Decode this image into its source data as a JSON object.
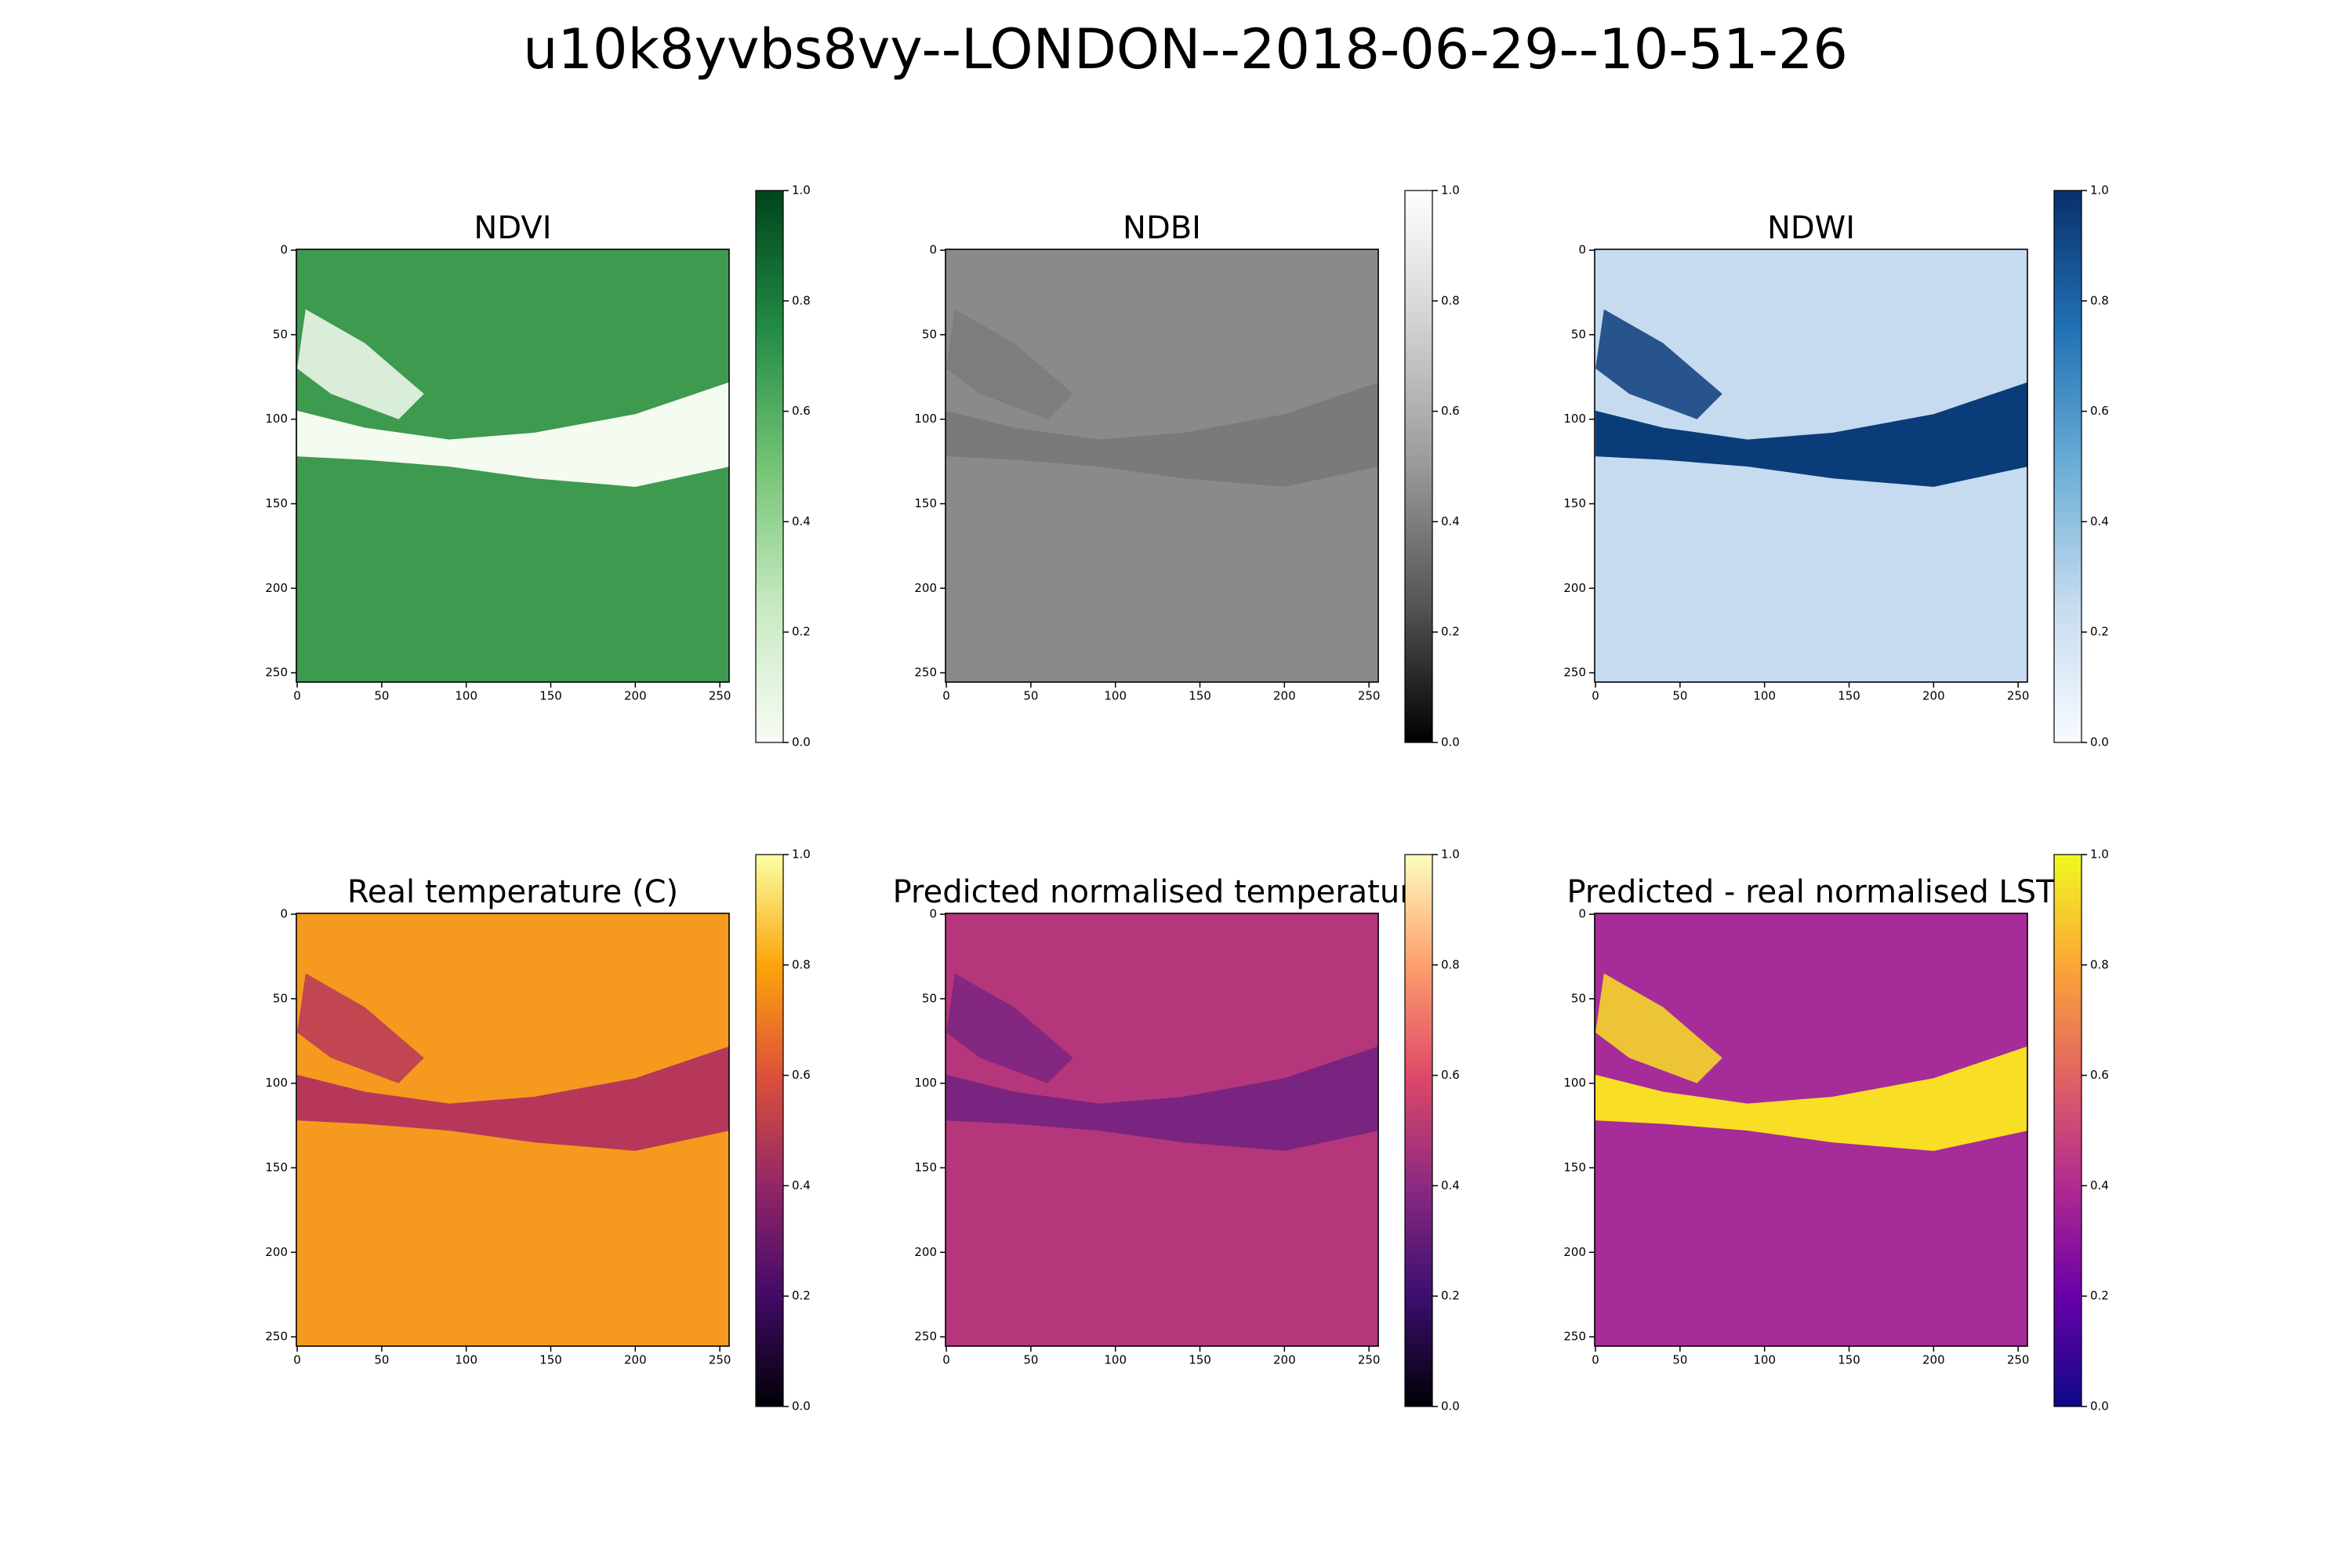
{
  "title": "u10k8yvbs8vy--LONDON--2018-06-29--10-51-26",
  "chart_data": [
    {
      "type": "image",
      "title": "NDVI",
      "xlim": [
        -0.5,
        255.5
      ],
      "ylim": [
        255.5,
        -0.5
      ],
      "xticks": [
        0,
        50,
        100,
        150,
        200,
        250
      ],
      "yticks": [
        0,
        50,
        100,
        150,
        200,
        250
      ],
      "land_color": "#3e9a4f",
      "river_color": "#f4fbf1",
      "colorbar": {
        "lim": [
          0,
          1
        ],
        "colors": [
          "#f7fcf5",
          "#c7e9c0",
          "#74c476",
          "#238b45",
          "#00441b"
        ],
        "ticks": [
          {
            "value": 0,
            "label": "0.0"
          },
          {
            "value": 0.2,
            "label": "0.2"
          },
          {
            "value": 0.4,
            "label": "0.4"
          },
          {
            "value": 0.6,
            "label": "0.6"
          },
          {
            "value": 0.8,
            "label": "0.8"
          },
          {
            "value": 1,
            "label": "1.0"
          }
        ]
      }
    },
    {
      "type": "image",
      "title": "NDBI",
      "xlim": [
        -0.5,
        255.5
      ],
      "ylim": [
        255.5,
        -0.5
      ],
      "xticks": [
        0,
        50,
        100,
        150,
        200,
        250
      ],
      "yticks": [
        0,
        50,
        100,
        150,
        200,
        250
      ],
      "land_color": "#8a8a8a",
      "river_color": "#7a7a7a",
      "colorbar": {
        "lim": [
          0,
          1
        ],
        "colors": [
          "#000000",
          "#555555",
          "#999999",
          "#d0d0d0",
          "#ffffff"
        ],
        "ticks": [
          {
            "value": 0,
            "label": "0.0"
          },
          {
            "value": 0.2,
            "label": "0.2"
          },
          {
            "value": 0.4,
            "label": "0.4"
          },
          {
            "value": 0.6,
            "label": "0.6"
          },
          {
            "value": 0.8,
            "label": "0.8"
          },
          {
            "value": 1,
            "label": "1.0"
          }
        ]
      }
    },
    {
      "type": "image",
      "title": "NDWI",
      "xlim": [
        -0.5,
        255.5
      ],
      "ylim": [
        255.5,
        -0.5
      ],
      "xticks": [
        0,
        50,
        100,
        150,
        200,
        250
      ],
      "yticks": [
        0,
        50,
        100,
        150,
        200,
        250
      ],
      "land_color": "#c6dbef",
      "river_color": "#0b3c7a",
      "colorbar": {
        "lim": [
          0,
          1
        ],
        "colors": [
          "#f7fbff",
          "#c6dbef",
          "#6baed6",
          "#2171b5",
          "#08306b"
        ],
        "ticks": [
          {
            "value": 0,
            "label": "0.0"
          },
          {
            "value": 0.2,
            "label": "0.2"
          },
          {
            "value": 0.4,
            "label": "0.4"
          },
          {
            "value": 0.6,
            "label": "0.6"
          },
          {
            "value": 0.8,
            "label": "0.8"
          },
          {
            "value": 1,
            "label": "1.0"
          }
        ]
      }
    },
    {
      "type": "image",
      "title": "Real temperature (C)",
      "xlim": [
        -0.5,
        255.5
      ],
      "ylim": [
        255.5,
        -0.5
      ],
      "xticks": [
        0,
        50,
        100,
        150,
        200,
        250
      ],
      "yticks": [
        0,
        50,
        100,
        150,
        200,
        250
      ],
      "land_color": "#f59a1e",
      "river_color": "#b7375a",
      "colorbar": {
        "lim": [
          0,
          1
        ],
        "colors": [
          "#000004",
          "#420a68",
          "#932667",
          "#dd513a",
          "#fca50a",
          "#fcffa4"
        ],
        "ticks": [
          {
            "value": 0,
            "label": "0.0"
          },
          {
            "value": 0.2,
            "label": "0.2"
          },
          {
            "value": 0.4,
            "label": "0.4"
          },
          {
            "value": 0.6,
            "label": "0.6"
          },
          {
            "value": 0.8,
            "label": "0.8"
          },
          {
            "value": 1,
            "label": "1.0"
          }
        ]
      }
    },
    {
      "type": "image",
      "title": "Predicted normalised temperature",
      "xlim": [
        -0.5,
        255.5
      ],
      "ylim": [
        255.5,
        -0.5
      ],
      "xticks": [
        0,
        50,
        100,
        150,
        200,
        250
      ],
      "yticks": [
        0,
        50,
        100,
        150,
        200,
        250
      ],
      "land_color": "#b5367a",
      "river_color": "#7a2482",
      "colorbar": {
        "lim": [
          0,
          1
        ],
        "colors": [
          "#000004",
          "#3b0f70",
          "#8c2981",
          "#de4968",
          "#fe9f6d",
          "#fcfdbf"
        ],
        "ticks": [
          {
            "value": 0,
            "label": "0.0"
          },
          {
            "value": 0.2,
            "label": "0.2"
          },
          {
            "value": 0.4,
            "label": "0.4"
          },
          {
            "value": 0.6,
            "label": "0.6"
          },
          {
            "value": 0.8,
            "label": "0.8"
          },
          {
            "value": 1,
            "label": "1.0"
          }
        ]
      }
    },
    {
      "type": "image",
      "title": "Predicted - real normalised LST",
      "xlim": [
        -0.5,
        255.5
      ],
      "ylim": [
        255.5,
        -0.5
      ],
      "xticks": [
        0,
        50,
        100,
        150,
        200,
        250
      ],
      "yticks": [
        0,
        50,
        100,
        150,
        200,
        250
      ],
      "land_color": "#a62c9a",
      "river_color": "#f8df25",
      "colorbar": {
        "lim": [
          0,
          1
        ],
        "colors": [
          "#0d0887",
          "#6a00a8",
          "#b12a90",
          "#e16462",
          "#fca636",
          "#f0f921"
        ],
        "ticks": [
          {
            "value": 0,
            "label": "0.0"
          },
          {
            "value": 0.2,
            "label": "0.2"
          },
          {
            "value": 0.4,
            "label": "0.4"
          },
          {
            "value": 0.6,
            "label": "0.6"
          },
          {
            "value": 0.8,
            "label": "0.8"
          },
          {
            "value": 1,
            "label": "1.0"
          }
        ]
      }
    }
  ]
}
